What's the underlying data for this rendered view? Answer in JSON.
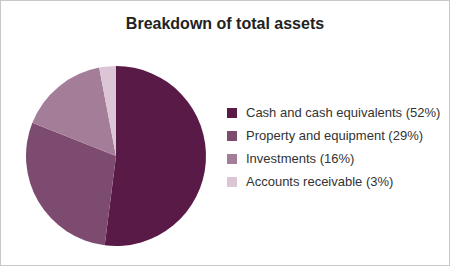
{
  "chart_data": {
    "type": "pie",
    "title": "Breakdown of total assets",
    "categories": [
      "Cash and cash equivalents (52%)",
      "Property and equipment (29%)",
      "Investments (16%)",
      "Accounts receivable (3%)"
    ],
    "values": [
      52,
      29,
      16,
      3
    ],
    "colors": [
      "#5a1a48",
      "#7d4a70",
      "#a47d99",
      "#dcc6d6"
    ],
    "legend": "right",
    "data_labels": false
  }
}
